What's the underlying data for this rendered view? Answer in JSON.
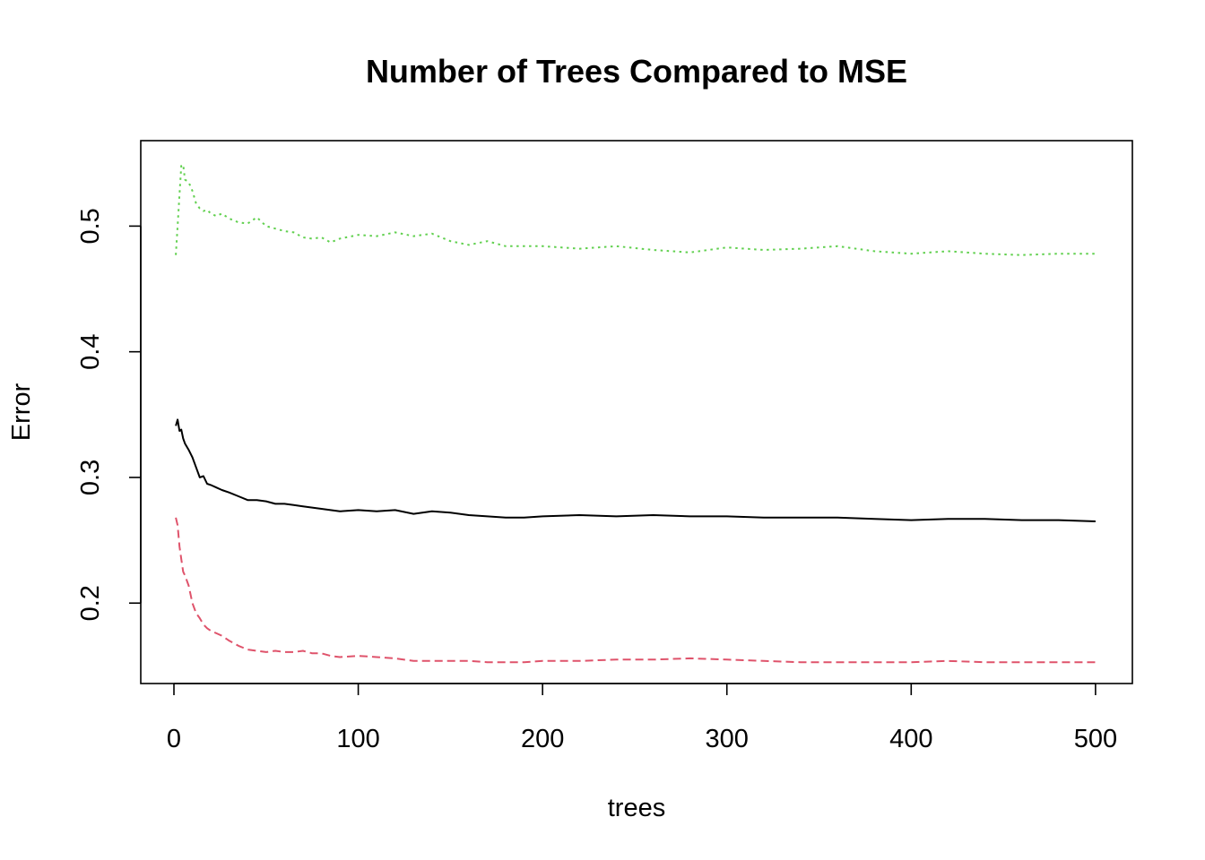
{
  "chart_data": {
    "type": "line",
    "title": "Number of Trees Compared to MSE",
    "xlabel": "trees",
    "ylabel": "Error",
    "xlim": [
      -18,
      520
    ],
    "ylim": [
      0.136,
      0.568
    ],
    "x_ticks": [
      0,
      100,
      200,
      300,
      400,
      500
    ],
    "x_tick_labels": [
      "0",
      "100",
      "200",
      "300",
      "400",
      "500"
    ],
    "y_ticks": [
      0.2,
      0.3,
      0.4,
      0.5
    ],
    "y_tick_labels": [
      "0.2",
      "0.3",
      "0.4",
      "0.5"
    ],
    "grid": false,
    "legend": "none",
    "series": [
      {
        "color": "#000000",
        "dash": "solid",
        "x": [
          1,
          2,
          3,
          4,
          5,
          6,
          8,
          10,
          12,
          14,
          16,
          18,
          20,
          23,
          26,
          30,
          35,
          40,
          45,
          50,
          55,
          60,
          65,
          70,
          75,
          80,
          85,
          90,
          100,
          110,
          120,
          130,
          140,
          150,
          160,
          170,
          180,
          190,
          200,
          220,
          240,
          260,
          280,
          300,
          320,
          340,
          360,
          380,
          400,
          420,
          440,
          460,
          480,
          500
        ],
        "y": [
          0.341,
          0.346,
          0.337,
          0.338,
          0.331,
          0.327,
          0.322,
          0.316,
          0.308,
          0.3,
          0.301,
          0.295,
          0.294,
          0.292,
          0.29,
          0.288,
          0.285,
          0.282,
          0.282,
          0.281,
          0.279,
          0.279,
          0.278,
          0.277,
          0.276,
          0.275,
          0.274,
          0.273,
          0.274,
          0.273,
          0.274,
          0.271,
          0.273,
          0.272,
          0.27,
          0.269,
          0.268,
          0.268,
          0.269,
          0.27,
          0.269,
          0.27,
          0.269,
          0.269,
          0.268,
          0.268,
          0.268,
          0.267,
          0.266,
          0.267,
          0.267,
          0.266,
          0.266,
          0.265
        ]
      },
      {
        "color": "#df536b",
        "dash": "dashed",
        "x": [
          1,
          2,
          3,
          4,
          5,
          6,
          8,
          10,
          12,
          14,
          16,
          18,
          20,
          23,
          26,
          30,
          35,
          40,
          45,
          50,
          55,
          60,
          65,
          70,
          75,
          80,
          85,
          90,
          100,
          110,
          120,
          130,
          140,
          150,
          160,
          170,
          180,
          190,
          200,
          220,
          240,
          260,
          280,
          300,
          320,
          340,
          360,
          380,
          400,
          420,
          440,
          460,
          480,
          500
        ],
        "y": [
          0.268,
          0.262,
          0.245,
          0.235,
          0.225,
          0.222,
          0.214,
          0.2,
          0.192,
          0.188,
          0.183,
          0.18,
          0.178,
          0.176,
          0.174,
          0.17,
          0.166,
          0.163,
          0.162,
          0.161,
          0.162,
          0.161,
          0.161,
          0.162,
          0.16,
          0.16,
          0.158,
          0.157,
          0.158,
          0.157,
          0.156,
          0.154,
          0.154,
          0.154,
          0.154,
          0.153,
          0.153,
          0.153,
          0.154,
          0.154,
          0.155,
          0.155,
          0.156,
          0.155,
          0.154,
          0.153,
          0.153,
          0.153,
          0.153,
          0.154,
          0.153,
          0.153,
          0.153,
          0.153
        ]
      },
      {
        "color": "#61d04f",
        "dash": "dotted",
        "x": [
          1,
          2,
          3,
          4,
          5,
          6,
          8,
          10,
          12,
          14,
          16,
          18,
          20,
          23,
          26,
          30,
          35,
          40,
          45,
          50,
          55,
          60,
          65,
          70,
          75,
          80,
          85,
          90,
          100,
          110,
          120,
          130,
          140,
          150,
          160,
          170,
          180,
          190,
          200,
          220,
          240,
          260,
          280,
          300,
          320,
          340,
          360,
          380,
          400,
          420,
          440,
          460,
          480,
          500
        ],
        "y": [
          0.477,
          0.5,
          0.525,
          0.548,
          0.549,
          0.537,
          0.535,
          0.528,
          0.518,
          0.514,
          0.512,
          0.513,
          0.51,
          0.508,
          0.51,
          0.506,
          0.503,
          0.502,
          0.507,
          0.5,
          0.498,
          0.496,
          0.495,
          0.491,
          0.49,
          0.491,
          0.487,
          0.49,
          0.493,
          0.492,
          0.495,
          0.492,
          0.494,
          0.488,
          0.485,
          0.488,
          0.484,
          0.484,
          0.484,
          0.482,
          0.484,
          0.481,
          0.479,
          0.483,
          0.481,
          0.482,
          0.484,
          0.48,
          0.478,
          0.48,
          0.478,
          0.477,
          0.478,
          0.478
        ]
      }
    ]
  }
}
